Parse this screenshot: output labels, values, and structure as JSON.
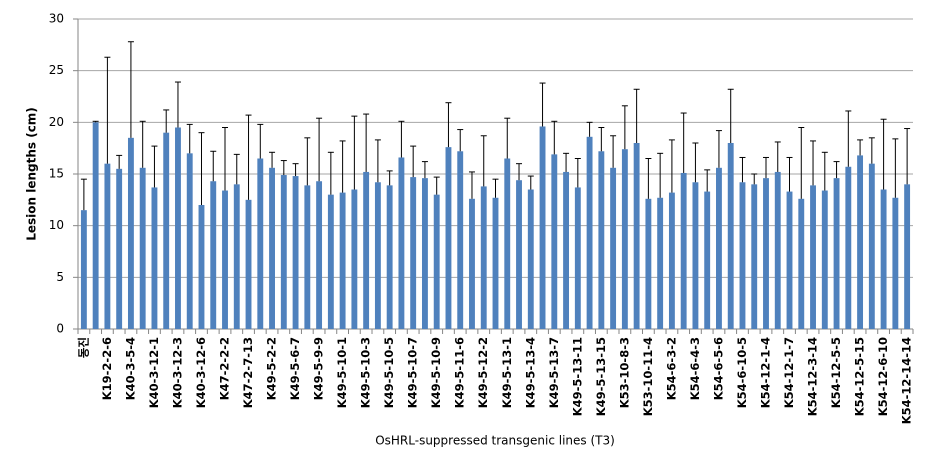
{
  "chart_data": {
    "type": "bar",
    "y_label": "Lesion lengths (cm)",
    "x_label": "OsHRL-suppressed transgenic lines (T3)",
    "color": "#4f81bd",
    "ylim": [
      0,
      30
    ],
    "yticks": [
      0,
      5,
      10,
      15,
      20,
      25,
      30
    ],
    "grid": true,
    "categories": [
      "동진",
      null,
      "K19-2-2-6",
      null,
      "K40-3-5-4",
      null,
      "K40-3-12-1",
      null,
      "K40-3-12-3",
      null,
      "K40-3-12-6",
      null,
      "K47-2-2-2",
      null,
      "K47-2-7-13",
      null,
      "K49-5-2-2",
      null,
      "K49-5-6-7",
      null,
      "K49-5-9-9",
      null,
      "K49-5-10-1",
      null,
      "K49-5-10-3",
      null,
      "K49-5-10-5",
      null,
      "K49-5-10-7",
      null,
      "K49-5-10-9",
      null,
      "K49-5-11-6",
      null,
      "K49-5-12-2",
      null,
      "K49-5-13-1",
      null,
      "K49-5-13-4",
      null,
      "K49-5-13-7",
      null,
      "K49-5-13-11",
      null,
      "K49-5-13-15",
      null,
      "K53-10-8-3",
      null,
      "K53-10-11-4",
      null,
      "K54-6-3-2",
      null,
      "K54-6-4-3",
      null,
      "K54-6-5-6",
      null,
      "K54-6-10-5",
      null,
      "K54-12-1-4",
      null,
      "K54-12-1-7",
      null,
      "K54-12-3-14",
      null,
      "K54-12-5-5",
      null,
      "K54-12-5-15",
      null,
      "K54-12-6-10",
      null,
      "K54-12-14-14"
    ],
    "values": [
      11.5,
      20,
      16,
      15.5,
      18.5,
      15.6,
      13.7,
      19,
      19.5,
      17,
      12,
      14.3,
      13.4,
      14,
      12.5,
      16.5,
      15.6,
      14.9,
      14.8,
      13.9,
      14.3,
      13,
      13.2,
      13.5,
      15.2,
      14.2,
      13.9,
      16.6,
      14.7,
      14.6,
      13,
      17.6,
      17.2,
      12.6,
      13.8,
      12.7,
      16.5,
      14.4,
      13.5,
      19.6,
      16.9,
      15.2,
      13.7,
      18.6,
      17.2,
      15.6,
      17.4,
      18,
      12.6,
      12.7,
      13.2,
      15.1,
      14.2,
      13.3,
      15.6,
      18,
      14.2,
      14,
      14.6,
      15.2,
      13.3,
      12.6,
      13.9,
      13.4,
      14.6,
      15.7,
      16.8,
      16,
      13.5,
      12.7,
      14
    ],
    "errors": [
      3,
      0.1,
      10.3,
      1.3,
      9.3,
      4.5,
      4,
      2.2,
      4.4,
      2.8,
      7,
      2.9,
      6.1,
      2.9,
      8.2,
      3.3,
      1.5,
      1.4,
      1.2,
      4.6,
      6.1,
      4.1,
      5,
      7.1,
      5.6,
      4.1,
      1.4,
      3.5,
      3,
      1.6,
      1.7,
      4.3,
      2.1,
      2.6,
      4.9,
      1.8,
      3.9,
      1.6,
      1.3,
      4.2,
      3.2,
      1.8,
      2.8,
      1.4,
      2.3,
      3.1,
      4.2,
      5.2,
      3.9,
      4.3,
      5.1,
      5.8,
      3.8,
      2.1,
      3.6,
      5.2,
      2.4,
      1,
      2,
      2.9,
      3.3,
      6.9,
      4.3,
      3.7,
      1.6,
      5.4,
      1.5,
      2.5,
      6.8,
      5.7,
      5.4
    ]
  }
}
